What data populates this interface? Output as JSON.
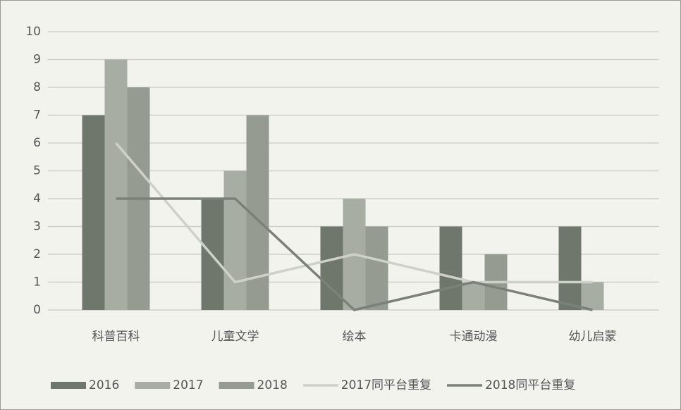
{
  "chart_data": {
    "type": "bar",
    "categories": [
      "科普百科",
      "儿童文学",
      "绘本",
      "卡通动漫",
      "幼儿启蒙"
    ],
    "series": [
      {
        "name": "2016",
        "type": "bar",
        "color": "#6f776d",
        "values": [
          7,
          4,
          3,
          3,
          3
        ]
      },
      {
        "name": "2017",
        "type": "bar",
        "color": "#a7ada2",
        "values": [
          9,
          5,
          4,
          1,
          1
        ]
      },
      {
        "name": "2018",
        "type": "bar",
        "color": "#959b91",
        "values": [
          8,
          7,
          3,
          2,
          0
        ]
      },
      {
        "name": "2017同平台重复",
        "type": "line",
        "color": "#cdd1c8",
        "values": [
          6,
          1,
          2,
          1,
          1
        ]
      },
      {
        "name": "2018同平台重复",
        "type": "line",
        "color": "#7b8179",
        "values": [
          4,
          4,
          0,
          1,
          0
        ]
      }
    ],
    "ylim": [
      0,
      10
    ],
    "yticks": [
      0,
      1,
      2,
      3,
      4,
      5,
      6,
      7,
      8,
      9,
      10
    ],
    "grid": true,
    "legend": "bottom"
  }
}
